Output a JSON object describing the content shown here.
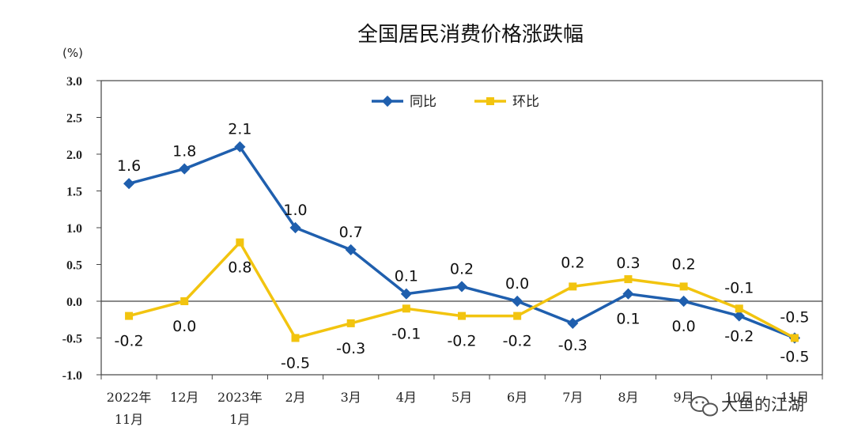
{
  "chart_data": {
    "type": "line",
    "title": "全国居民消费价格涨跌幅",
    "unit_label": "(%)",
    "ylim": [
      -1.0,
      3.0
    ],
    "yticks": [
      "3.0",
      "2.5",
      "2.0",
      "1.5",
      "1.0",
      "0.5",
      "0.0",
      "-0.5",
      "-1.0"
    ],
    "categories": [
      [
        "2022年",
        "11月"
      ],
      [
        "12月"
      ],
      [
        "2023年",
        "1月"
      ],
      [
        "2月"
      ],
      [
        "3月"
      ],
      [
        "4月"
      ],
      [
        "5月"
      ],
      [
        "6月"
      ],
      [
        "7月"
      ],
      [
        "8月"
      ],
      [
        "9月"
      ],
      [
        "10月"
      ],
      [
        "11月"
      ]
    ],
    "legend_position": "top-center",
    "grid": false,
    "series": [
      {
        "name": "同比",
        "color": "#1f5fae",
        "values": [
          1.6,
          1.8,
          2.1,
          1.0,
          0.7,
          0.1,
          0.2,
          0.0,
          -0.3,
          0.1,
          0.0,
          -0.2,
          -0.5
        ],
        "labels": [
          "1.6",
          "1.8",
          "2.1",
          "1.0",
          "0.7",
          "0.1",
          "0.2",
          "0.0",
          "-0.3",
          "0.1",
          "0.0",
          "-0.2",
          "-0.5"
        ]
      },
      {
        "name": "环比",
        "color": "#f2c40f",
        "values": [
          -0.2,
          0.0,
          0.8,
          -0.5,
          -0.3,
          -0.1,
          -0.2,
          -0.2,
          0.2,
          0.3,
          0.2,
          -0.1,
          -0.5
        ],
        "labels": [
          "-0.2",
          "0.0",
          "0.8",
          "-0.5",
          "-0.3",
          "-0.1",
          "-0.2",
          "-0.2",
          "0.2",
          "0.3",
          "0.2",
          "-0.1",
          "-0.5"
        ]
      }
    ]
  },
  "watermark": {
    "text": "大鱼的江湖",
    "icon": "wechat-icon"
  }
}
